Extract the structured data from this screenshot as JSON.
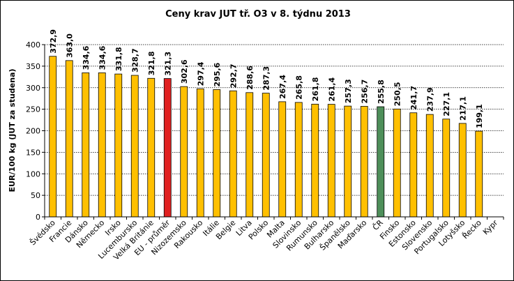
{
  "chart_data": {
    "type": "bar",
    "title": "Ceny krav JUT  tř. O3  v 8. týdnu 2013",
    "xlabel": "",
    "ylabel": "EUR/100 kg (JUT za studena)",
    "ylim": [
      0,
      400
    ],
    "yticks": [
      0,
      50,
      100,
      150,
      200,
      250,
      300,
      350,
      400
    ],
    "grid": true,
    "categories": [
      "Švédsko",
      "Francie",
      "Dánsko",
      "Německo",
      "Irsko",
      "Lucembursko",
      "Velká Británie",
      "EU - průměr",
      "Nizozemsko",
      "Rakousko",
      "Itálie",
      "Belgie",
      "Litva",
      "Polsko",
      "Malta",
      "Slovinsko",
      "Rumunsko",
      "Bulharsko",
      "Španělsko",
      "Maďarsko",
      "ČR",
      "Finsko",
      "Estonsko",
      "Slovensko",
      "Portugalsko",
      "Lotyšsko",
      "Řecko",
      "Kypr"
    ],
    "values": [
      372.9,
      363.0,
      334.6,
      334.6,
      331.8,
      328.7,
      321.8,
      321.3,
      302.6,
      297.4,
      295.6,
      292.7,
      288.6,
      287.3,
      267.4,
      265.8,
      261.8,
      261.4,
      257.3,
      256.7,
      255.8,
      250.5,
      241.7,
      237.9,
      227.1,
      217.1,
      199.1,
      null
    ],
    "value_labels": [
      "372,9",
      "363,0",
      "334,6",
      "334,6",
      "331,8",
      "328,7",
      "321,8",
      "321,3",
      "302,6",
      "297,4",
      "295,6",
      "292,7",
      "288,6",
      "287,3",
      "267,4",
      "265,8",
      "261,8",
      "261,4",
      "257,3",
      "256,7",
      "255,8",
      "250,5",
      "241,7",
      "237,9",
      "227,1",
      "217,1",
      "199,1",
      ""
    ],
    "colors": {
      "default": "#FFC000",
      "highlight_eu": "#E02020",
      "highlight_cr": "#4E8F5A",
      "stroke": "#000000"
    },
    "highlights": {
      "EU - průměr": "highlight_eu",
      "ČR": "highlight_cr"
    }
  }
}
